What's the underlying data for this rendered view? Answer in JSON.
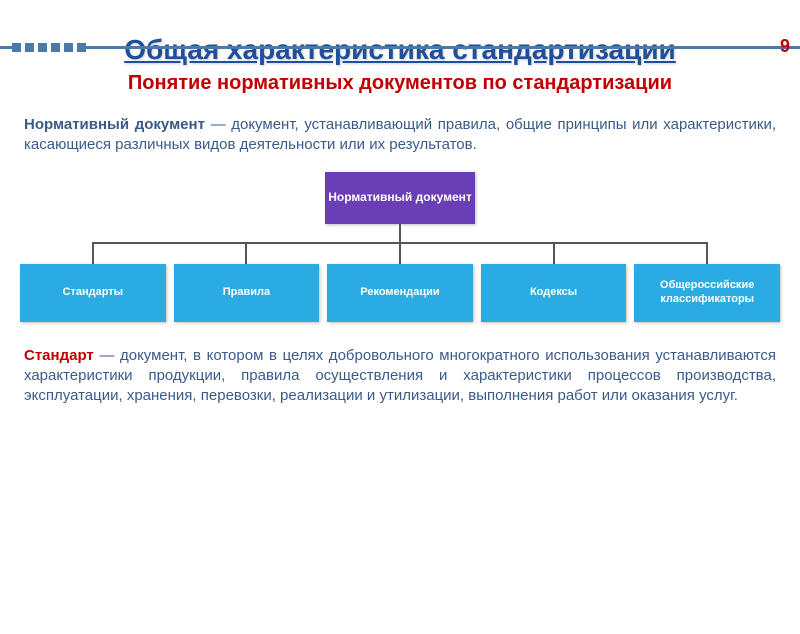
{
  "page_number": "9",
  "main_title": "Общая характеристика стандартизации",
  "subtitle": "Понятие нормативных документов по стандартизации",
  "definition": {
    "term": "Нормативный документ",
    "text": "— документ, устанавливающий правила, общие принципы или характеристики, касающиеся различных видов деятельности или их результатов."
  },
  "diagram": {
    "root": "Нормативный документ",
    "root_bg": "#6a3fb5",
    "child_bg": "#2aace2",
    "connector_color": "#555555",
    "children": [
      "Стандарты",
      "Правила",
      "Рекомендации",
      "Кодексы",
      "Общероссийские классификаторы"
    ]
  },
  "standard": {
    "term": "Стандарт",
    "text": "— документ, в котором в целях добровольного многократного использования устанавливаются характеристики продукции, правила осуществления и характеристики процессов производства, эксплуатации, хранения, перевозки, реализации и утилизации, выполнения работ или оказания услуг."
  },
  "colors": {
    "title_color": "#1f4e9c",
    "subtitle_color": "#c00000",
    "body_text_color": "#3a5a8a",
    "decoration_color": "#4a7aa8"
  }
}
